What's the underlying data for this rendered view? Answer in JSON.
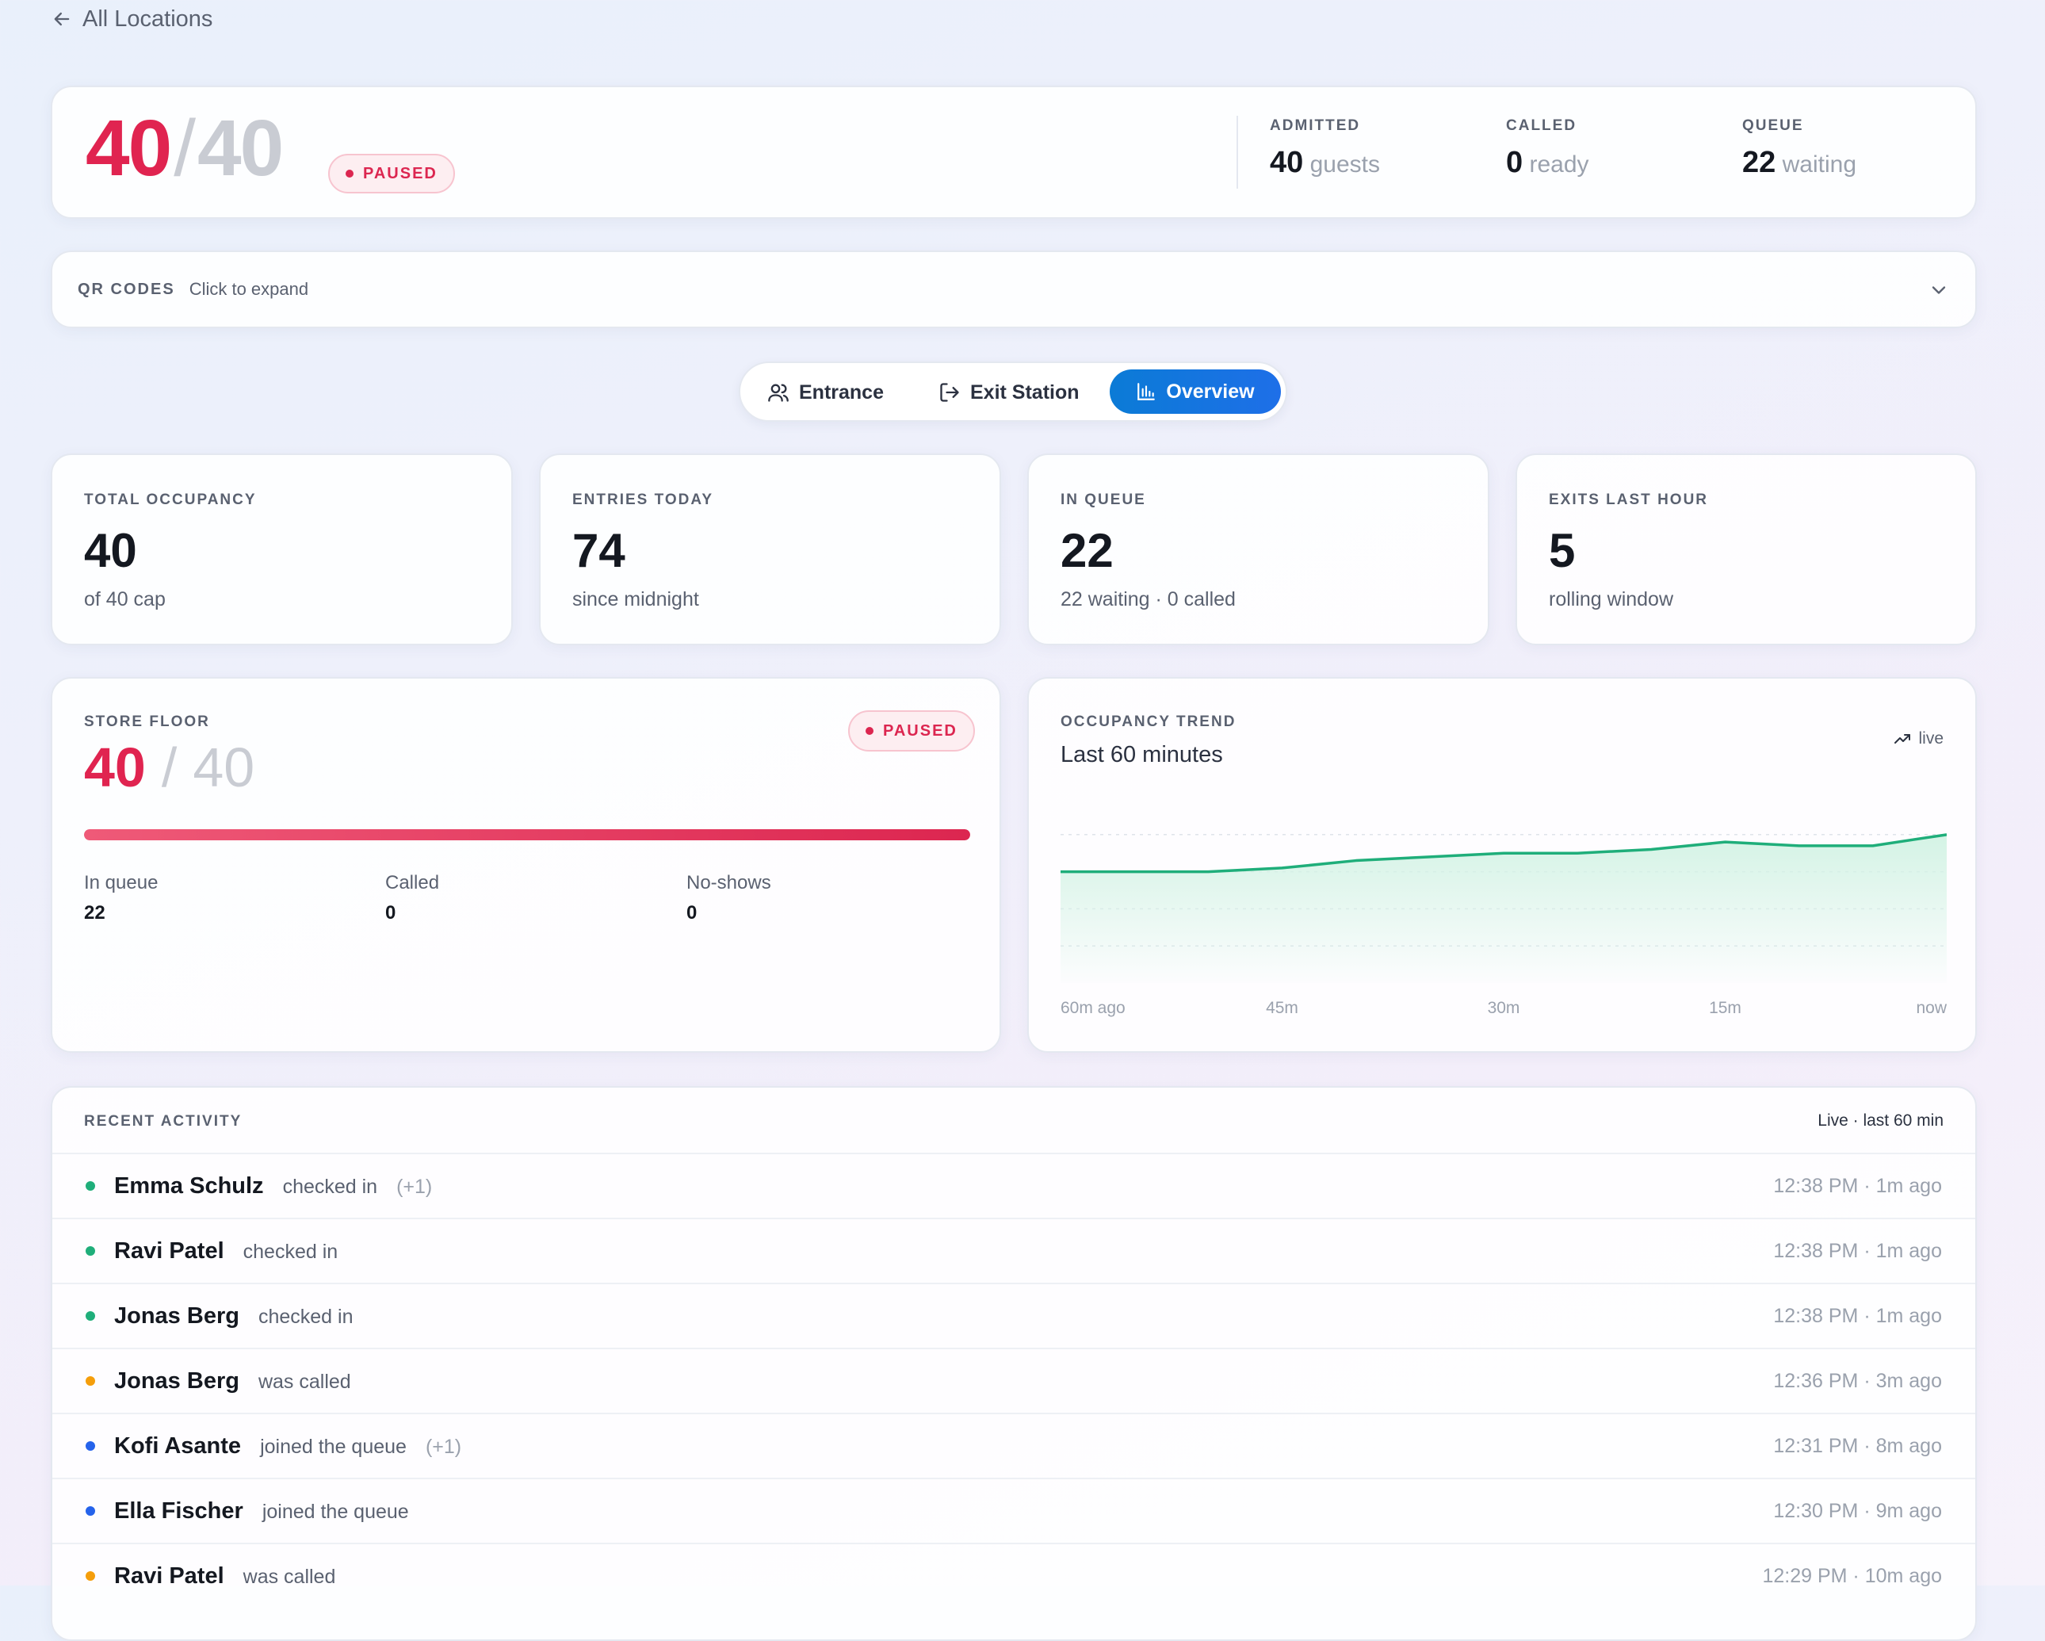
{
  "nav": {
    "back_label": "All Locations"
  },
  "hero": {
    "current": "40",
    "slash": "/",
    "capacity": "40",
    "status": "PAUSED",
    "stats": [
      {
        "label": "ADMITTED",
        "value": "40",
        "unit": "guests"
      },
      {
        "label": "CALLED",
        "value": "0",
        "unit": "ready"
      },
      {
        "label": "QUEUE",
        "value": "22",
        "unit": "waiting"
      }
    ]
  },
  "qr": {
    "label": "QR CODES",
    "hint": "Click to expand"
  },
  "tabs": [
    {
      "label": "Entrance",
      "icon": "users-icon",
      "active": false
    },
    {
      "label": "Exit Station",
      "icon": "exit-icon",
      "active": true
    },
    {
      "label": "Overview",
      "icon": "bar-chart-icon",
      "active": true
    }
  ],
  "kpis": [
    {
      "label": "TOTAL OCCUPANCY",
      "value": "40",
      "sub": "of 40 cap"
    },
    {
      "label": "ENTRIES TODAY",
      "value": "74",
      "sub": "since midnight"
    },
    {
      "label": "IN QUEUE",
      "value": "22",
      "sub": "22 waiting · 0 called"
    },
    {
      "label": "EXITS LAST HOUR",
      "value": "5",
      "sub": "rolling window"
    }
  ],
  "floor": {
    "label": "STORE FLOOR",
    "status": "PAUSED",
    "current": "40",
    "slash": "/",
    "capacity": "40",
    "fill_fraction": 1.0,
    "stats": [
      {
        "label": "In queue",
        "value": "22"
      },
      {
        "label": "Called",
        "value": "0"
      },
      {
        "label": "No-shows",
        "value": "0"
      }
    ]
  },
  "trend": {
    "label": "OCCUPANCY TREND",
    "title": "Last 60 minutes",
    "live_label": "live",
    "colors": {
      "line": "#1fae7a",
      "fill": "#d4f3e5"
    }
  },
  "chart_data": {
    "type": "area",
    "x": [
      60,
      55,
      50,
      45,
      40,
      35,
      30,
      25,
      20,
      15,
      10,
      5,
      0
    ],
    "values": [
      30,
      30,
      30,
      31,
      33,
      34,
      35,
      35,
      36,
      38,
      37,
      37,
      40
    ],
    "ylim": [
      0,
      50
    ],
    "x_tick_labels": [
      "60m ago",
      "45m",
      "30m",
      "15m",
      "now"
    ],
    "grid": true
  },
  "activity": {
    "label": "RECENT ACTIVITY",
    "meta": "Live · last 60 min",
    "colors": {
      "checkin": "#1fae7a",
      "called": "#f59e0b",
      "queue": "#2563eb"
    },
    "items": [
      {
        "name": "Emma Schulz",
        "action": "checked in",
        "extra": "(+1)",
        "time": "12:38 PM · 1m ago",
        "kind": "checkin"
      },
      {
        "name": "Ravi Patel",
        "action": "checked in",
        "extra": "",
        "time": "12:38 PM · 1m ago",
        "kind": "checkin"
      },
      {
        "name": "Jonas Berg",
        "action": "checked in",
        "extra": "",
        "time": "12:38 PM · 1m ago",
        "kind": "checkin"
      },
      {
        "name": "Jonas Berg",
        "action": "was called",
        "extra": "",
        "time": "12:36 PM · 3m ago",
        "kind": "called"
      },
      {
        "name": "Kofi Asante",
        "action": "joined the queue",
        "extra": "(+1)",
        "time": "12:31 PM · 8m ago",
        "kind": "queue"
      },
      {
        "name": "Ella Fischer",
        "action": "joined the queue",
        "extra": "",
        "time": "12:30 PM · 9m ago",
        "kind": "queue"
      },
      {
        "name": "Ravi Patel",
        "action": "was called",
        "extra": "",
        "time": "12:29 PM · 10m ago",
        "kind": "called"
      }
    ]
  }
}
